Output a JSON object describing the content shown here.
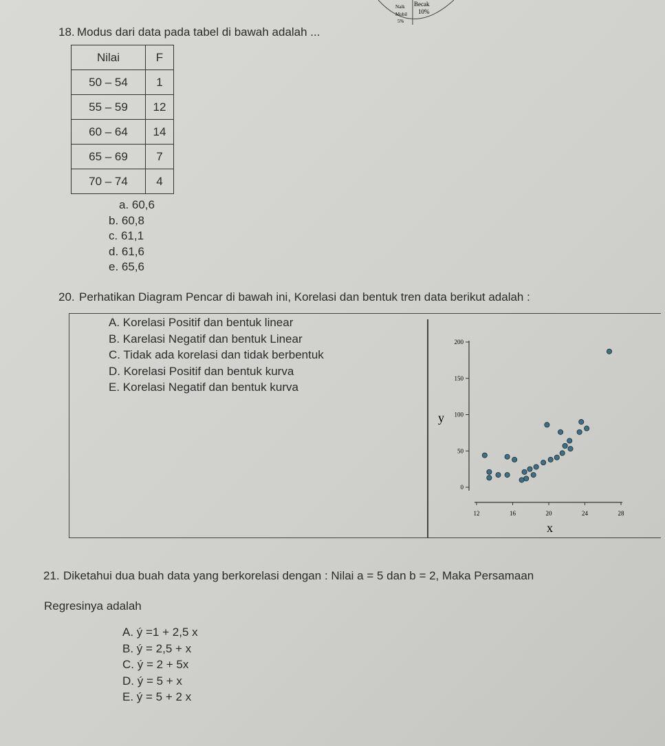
{
  "pie_fragment": {
    "labels": [
      "Becak",
      "10%",
      "Naik",
      "Mobil",
      "5%"
    ]
  },
  "q18": {
    "number": "18.",
    "text": "Modus dari data pada tabel di bawah adalah ...",
    "table": {
      "headers": [
        "Nilai",
        "F"
      ],
      "rows": [
        [
          "50 – 54",
          "1"
        ],
        [
          "55 – 59",
          "12"
        ],
        [
          "60 – 64",
          "14"
        ],
        [
          "65 – 69",
          "7"
        ],
        [
          "70 – 74",
          "4"
        ]
      ]
    },
    "options": [
      "a.  60,6",
      "b.  60,8",
      "c.  61,1",
      "d.  61,6",
      "e.  65,6"
    ]
  },
  "q20": {
    "number": "20.",
    "text": "Perhatikan Diagram Pencar di bawah ini, Korelasi dan bentuk tren data berikut adalah :",
    "options": [
      "A.  Korelasi Positif dan bentuk linear",
      "B.  Karelasi Negatif dan bentuk Linear",
      "C.  Tidak ada korelasi dan tidak berbentuk",
      "D.  Korelasi Positif dan bentuk kurva",
      "E.  Korelasi Negatif dan bentuk kurva"
    ],
    "chart": {
      "type": "scatter",
      "xlabel": "x",
      "ylabel": "y",
      "xlim": [
        12,
        28
      ],
      "ylim": [
        0,
        200
      ],
      "xticks": [
        12,
        16,
        20,
        24,
        28
      ],
      "yticks": [
        0,
        50,
        100,
        150,
        200
      ],
      "color": "#3f6f86",
      "x": [
        26.7,
        19.8,
        21.3,
        23.6,
        24.2,
        23.4,
        22.3,
        21.8,
        22.4,
        21.5,
        20.9,
        20.2,
        19.4,
        18.6,
        17.9,
        17.3,
        18.3,
        17.5,
        17.0,
        12.9,
        15.4,
        16.2,
        13.4,
        13.4,
        14.4,
        15.4
      ],
      "y": [
        187,
        86,
        76,
        90,
        81,
        76,
        64,
        57,
        53,
        47,
        41,
        38,
        34,
        28,
        25,
        21,
        17,
        12,
        10,
        44,
        42,
        38,
        21,
        13,
        17,
        17
      ]
    }
  },
  "q21": {
    "number": "21.",
    "text": "Diketahui  dua buah data yang berkorelasi dengan : Nilai a = 5 dan b = 2,  Maka Persamaan",
    "text2": "Regresinya adalah",
    "options": [
      "A. ý  =1 + 2,5 x",
      "B.  ý = 2,5 + x",
      "C.  ý = 2  + 5x",
      "D. ý  = 5 +  x",
      "E.  ý  = 5 + 2 x"
    ]
  }
}
